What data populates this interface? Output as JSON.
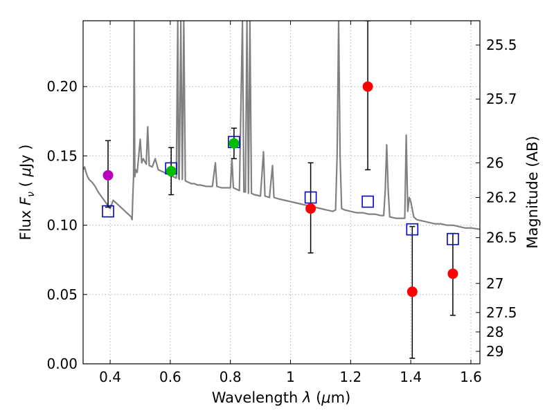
{
  "chart_data": {
    "type": "scatter",
    "xlabel": "Wavelength  λ (μm)",
    "ylabel": "Flux  Fν  ( μJy )",
    "ylabel_right": "Magnitude (AB)",
    "xlim": [
      0.31,
      1.63
    ],
    "ylim": [
      0.0,
      0.2475
    ],
    "grid": true,
    "x_ticks": [
      0.4,
      0.6,
      0.8,
      1.0,
      1.2,
      1.4,
      1.6
    ],
    "x_tick_labels": [
      "0.4",
      "0.6",
      "0.8",
      "1",
      "1.2",
      "1.4",
      "1.6"
    ],
    "y_ticks": [
      0.0,
      0.05,
      0.1,
      0.15,
      0.2
    ],
    "y_tick_labels": [
      "0.00",
      "0.05",
      "0.10",
      "0.15",
      "0.20"
    ],
    "right_ticks": [
      {
        "flux": 0.23,
        "label": "25.5"
      },
      {
        "flux": 0.191,
        "label": "25.7"
      },
      {
        "flux": 0.145,
        "label": "26"
      },
      {
        "flux": 0.12,
        "label": "26.2"
      },
      {
        "flux": 0.091,
        "label": "26.5"
      },
      {
        "flux": 0.058,
        "label": "27"
      },
      {
        "flux": 0.037,
        "label": "27.5"
      },
      {
        "flux": 0.023,
        "label": "28"
      },
      {
        "flux": 0.009,
        "label": "29"
      }
    ],
    "colors": {
      "model": "#808080",
      "model_points": "#0000cc",
      "errorbar": "#000000",
      "grid": "#b0b0b0"
    },
    "model_photometry": [
      {
        "x": 0.393,
        "y": 0.11
      },
      {
        "x": 0.603,
        "y": 0.141
      },
      {
        "x": 0.812,
        "y": 0.16
      },
      {
        "x": 1.067,
        "y": 0.12
      },
      {
        "x": 1.257,
        "y": 0.117
      },
      {
        "x": 1.405,
        "y": 0.097
      },
      {
        "x": 1.54,
        "y": 0.09
      }
    ],
    "observed_photometry": [
      {
        "x": 0.393,
        "y": 0.136,
        "err_lo": 0.113,
        "err_hi": 0.161,
        "color": "#bb00bb"
      },
      {
        "x": 0.603,
        "y": 0.139,
        "err_lo": 0.122,
        "err_hi": 0.156,
        "color": "#00bb00"
      },
      {
        "x": 0.812,
        "y": 0.159,
        "err_lo": 0.148,
        "err_hi": 0.17,
        "color": "#00bb00"
      },
      {
        "x": 1.067,
        "y": 0.112,
        "err_lo": 0.08,
        "err_hi": 0.145,
        "color": "#ff0000"
      },
      {
        "x": 1.257,
        "y": 0.2,
        "err_lo": 0.14,
        "err_hi": 0.2475,
        "color": "#ff0000"
      },
      {
        "x": 1.405,
        "y": 0.052,
        "err_lo": 0.004,
        "err_hi": 0.099,
        "color": "#ff0000"
      },
      {
        "x": 1.54,
        "y": 0.065,
        "err_lo": 0.035,
        "err_hi": 0.094,
        "color": "#ff0000"
      }
    ],
    "model_spectrum": [
      [
        0.31,
        0.14
      ],
      [
        0.315,
        0.142
      ],
      [
        0.32,
        0.138
      ],
      [
        0.325,
        0.135
      ],
      [
        0.33,
        0.133
      ],
      [
        0.34,
        0.131
      ],
      [
        0.35,
        0.128
      ],
      [
        0.36,
        0.124
      ],
      [
        0.37,
        0.121
      ],
      [
        0.38,
        0.118
      ],
      [
        0.39,
        0.115
      ],
      [
        0.4,
        0.112
      ],
      [
        0.41,
        0.118
      ],
      [
        0.42,
        0.116
      ],
      [
        0.43,
        0.114
      ],
      [
        0.44,
        0.112
      ],
      [
        0.45,
        0.11
      ],
      [
        0.46,
        0.108
      ],
      [
        0.465,
        0.107
      ],
      [
        0.47,
        0.106
      ],
      [
        0.473,
        0.104
      ],
      [
        0.475,
        0.118
      ],
      [
        0.478,
        0.135
      ],
      [
        0.48,
        0.247
      ],
      [
        0.482,
        0.135
      ],
      [
        0.485,
        0.14
      ],
      [
        0.49,
        0.138
      ],
      [
        0.495,
        0.15
      ],
      [
        0.5,
        0.162
      ],
      [
        0.505,
        0.145
      ],
      [
        0.51,
        0.148
      ],
      [
        0.515,
        0.146
      ],
      [
        0.52,
        0.144
      ],
      [
        0.525,
        0.171
      ],
      [
        0.53,
        0.143
      ],
      [
        0.54,
        0.142
      ],
      [
        0.55,
        0.148
      ],
      [
        0.56,
        0.14
      ],
      [
        0.57,
        0.139
      ],
      [
        0.58,
        0.138
      ],
      [
        0.59,
        0.137
      ],
      [
        0.6,
        0.136
      ],
      [
        0.61,
        0.135
      ],
      [
        0.62,
        0.134
      ],
      [
        0.625,
        0.247
      ],
      [
        0.628,
        0.134
      ],
      [
        0.63,
        0.133
      ],
      [
        0.635,
        0.247
      ],
      [
        0.64,
        0.133
      ],
      [
        0.645,
        0.247
      ],
      [
        0.65,
        0.132
      ],
      [
        0.66,
        0.131
      ],
      [
        0.67,
        0.13
      ],
      [
        0.68,
        0.13
      ],
      [
        0.69,
        0.129
      ],
      [
        0.7,
        0.129
      ],
      [
        0.72,
        0.128
      ],
      [
        0.74,
        0.128
      ],
      [
        0.75,
        0.145
      ],
      [
        0.755,
        0.128
      ],
      [
        0.77,
        0.127
      ],
      [
        0.79,
        0.127
      ],
      [
        0.8,
        0.127
      ],
      [
        0.805,
        0.148
      ],
      [
        0.81,
        0.127
      ],
      [
        0.82,
        0.126
      ],
      [
        0.83,
        0.125
      ],
      [
        0.84,
        0.247
      ],
      [
        0.845,
        0.124
      ],
      [
        0.85,
        0.124
      ],
      [
        0.855,
        0.247
      ],
      [
        0.86,
        0.123
      ],
      [
        0.865,
        0.247
      ],
      [
        0.87,
        0.123
      ],
      [
        0.88,
        0.122
      ],
      [
        0.9,
        0.121
      ],
      [
        0.91,
        0.153
      ],
      [
        0.915,
        0.121
      ],
      [
        0.93,
        0.12
      ],
      [
        0.94,
        0.143
      ],
      [
        0.945,
        0.12
      ],
      [
        0.96,
        0.119
      ],
      [
        0.98,
        0.118
      ],
      [
        1.0,
        0.117
      ],
      [
        1.02,
        0.116
      ],
      [
        1.04,
        0.115
      ],
      [
        1.06,
        0.114
      ],
      [
        1.08,
        0.113
      ],
      [
        1.1,
        0.112
      ],
      [
        1.12,
        0.111
      ],
      [
        1.14,
        0.11
      ],
      [
        1.15,
        0.111
      ],
      [
        1.155,
        0.15
      ],
      [
        1.16,
        0.247
      ],
      [
        1.165,
        0.15
      ],
      [
        1.17,
        0.112
      ],
      [
        1.18,
        0.111
      ],
      [
        1.2,
        0.11
      ],
      [
        1.22,
        0.109
      ],
      [
        1.24,
        0.109
      ],
      [
        1.26,
        0.108
      ],
      [
        1.28,
        0.108
      ],
      [
        1.3,
        0.107
      ],
      [
        1.31,
        0.107
      ],
      [
        1.315,
        0.125
      ],
      [
        1.32,
        0.158
      ],
      [
        1.325,
        0.125
      ],
      [
        1.33,
        0.106
      ],
      [
        1.35,
        0.105
      ],
      [
        1.37,
        0.105
      ],
      [
        1.38,
        0.105
      ],
      [
        1.385,
        0.165
      ],
      [
        1.39,
        0.11
      ],
      [
        1.395,
        0.12
      ],
      [
        1.4,
        0.117
      ],
      [
        1.41,
        0.106
      ],
      [
        1.42,
        0.104
      ],
      [
        1.44,
        0.103
      ],
      [
        1.46,
        0.102
      ],
      [
        1.48,
        0.101
      ],
      [
        1.5,
        0.101
      ],
      [
        1.52,
        0.1
      ],
      [
        1.54,
        0.1
      ],
      [
        1.56,
        0.099
      ],
      [
        1.58,
        0.098
      ],
      [
        1.6,
        0.098
      ],
      [
        1.63,
        0.097
      ]
    ]
  }
}
